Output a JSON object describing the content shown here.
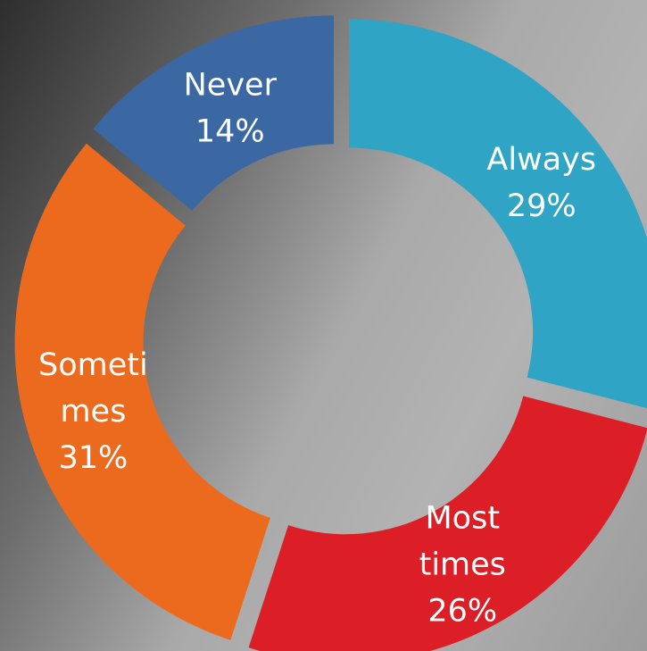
{
  "chart_data": {
    "type": "pie",
    "style": "exploded-donut",
    "slices": [
      {
        "category": "Always",
        "value": 29,
        "label_lines": [
          "Always",
          "29%"
        ],
        "color": "#2fa4c4"
      },
      {
        "category": "Most times",
        "value": 26,
        "label_lines": [
          "Most",
          "times",
          "26%"
        ],
        "color": "#dc1f27"
      },
      {
        "category": "Sometimes",
        "value": 31,
        "label_lines": [
          "Someti",
          "mes",
          "31%"
        ],
        "color": "#ec6a1d"
      },
      {
        "category": "Never",
        "value": 14,
        "label_lines": [
          "Never",
          "14%"
        ],
        "color": "#3b67a3"
      }
    ],
    "legend": "none"
  }
}
